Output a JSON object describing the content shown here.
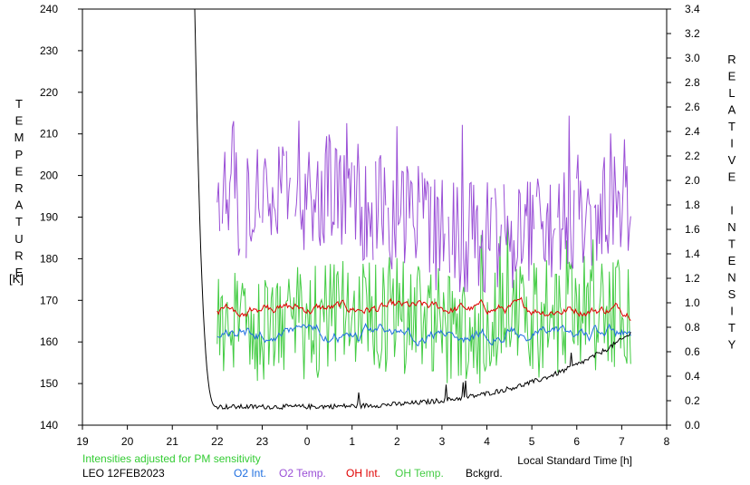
{
  "chart_data": {
    "type": "line",
    "left_axis_label": "TEMPERATURE",
    "left_axis_unit": "[K]",
    "right_axis_label": "RELATIVE INTENSITY",
    "xlabel": "Local Standard Time [h]",
    "x_ticks": [
      "19",
      "20",
      "21",
      "22",
      "23",
      "0",
      "1",
      "2",
      "3",
      "4",
      "5",
      "6",
      "7",
      "8"
    ],
    "x_range_hours": [
      19,
      32
    ],
    "y_left_ticks": [
      "140",
      "150",
      "160",
      "170",
      "180",
      "190",
      "200",
      "210",
      "220",
      "230",
      "240"
    ],
    "y_left_range": [
      140,
      240
    ],
    "y_right_ticks": [
      "0.0",
      "0.2",
      "0.4",
      "0.6",
      "0.8",
      "1.0",
      "1.2",
      "1.4",
      "1.6",
      "1.8",
      "2.0",
      "2.2",
      "2.4",
      "2.6",
      "2.8",
      "3.0",
      "3.2",
      "3.4"
    ],
    "y_right_range": [
      0,
      3.4
    ],
    "note": "Intensities adjusted for PM sensitivity",
    "station": "LEO 12FEB2023",
    "legend": [
      {
        "name": "O2 Int.",
        "color": "#1f6fe0"
      },
      {
        "name": "O2 Temp.",
        "color": "#9a4fd6"
      },
      {
        "name": "OH Int.",
        "color": "#e00000"
      },
      {
        "name": "OH Temp.",
        "color": "#44cc44"
      },
      {
        "name": "Bckgrd.",
        "color": "#000000"
      }
    ],
    "series_overview": {
      "time_range_hours": [
        22.0,
        31.2
      ],
      "o2_temp_K": {
        "typical_low": 176,
        "typical_high": 205,
        "max": 215
      },
      "oh_temp_K": {
        "typical_low": 155,
        "typical_high": 175,
        "max": 190
      },
      "oh_intensity": {
        "typical": 0.95,
        "range": [
          0.7,
          1.05
        ]
      },
      "o2_intensity": {
        "typical": 0.75,
        "range": [
          0.6,
          0.95
        ]
      },
      "background": {
        "start_hour": 21.5,
        "start_value": 3.4,
        "plateau": 0.15,
        "end_value": 0.75
      }
    }
  }
}
